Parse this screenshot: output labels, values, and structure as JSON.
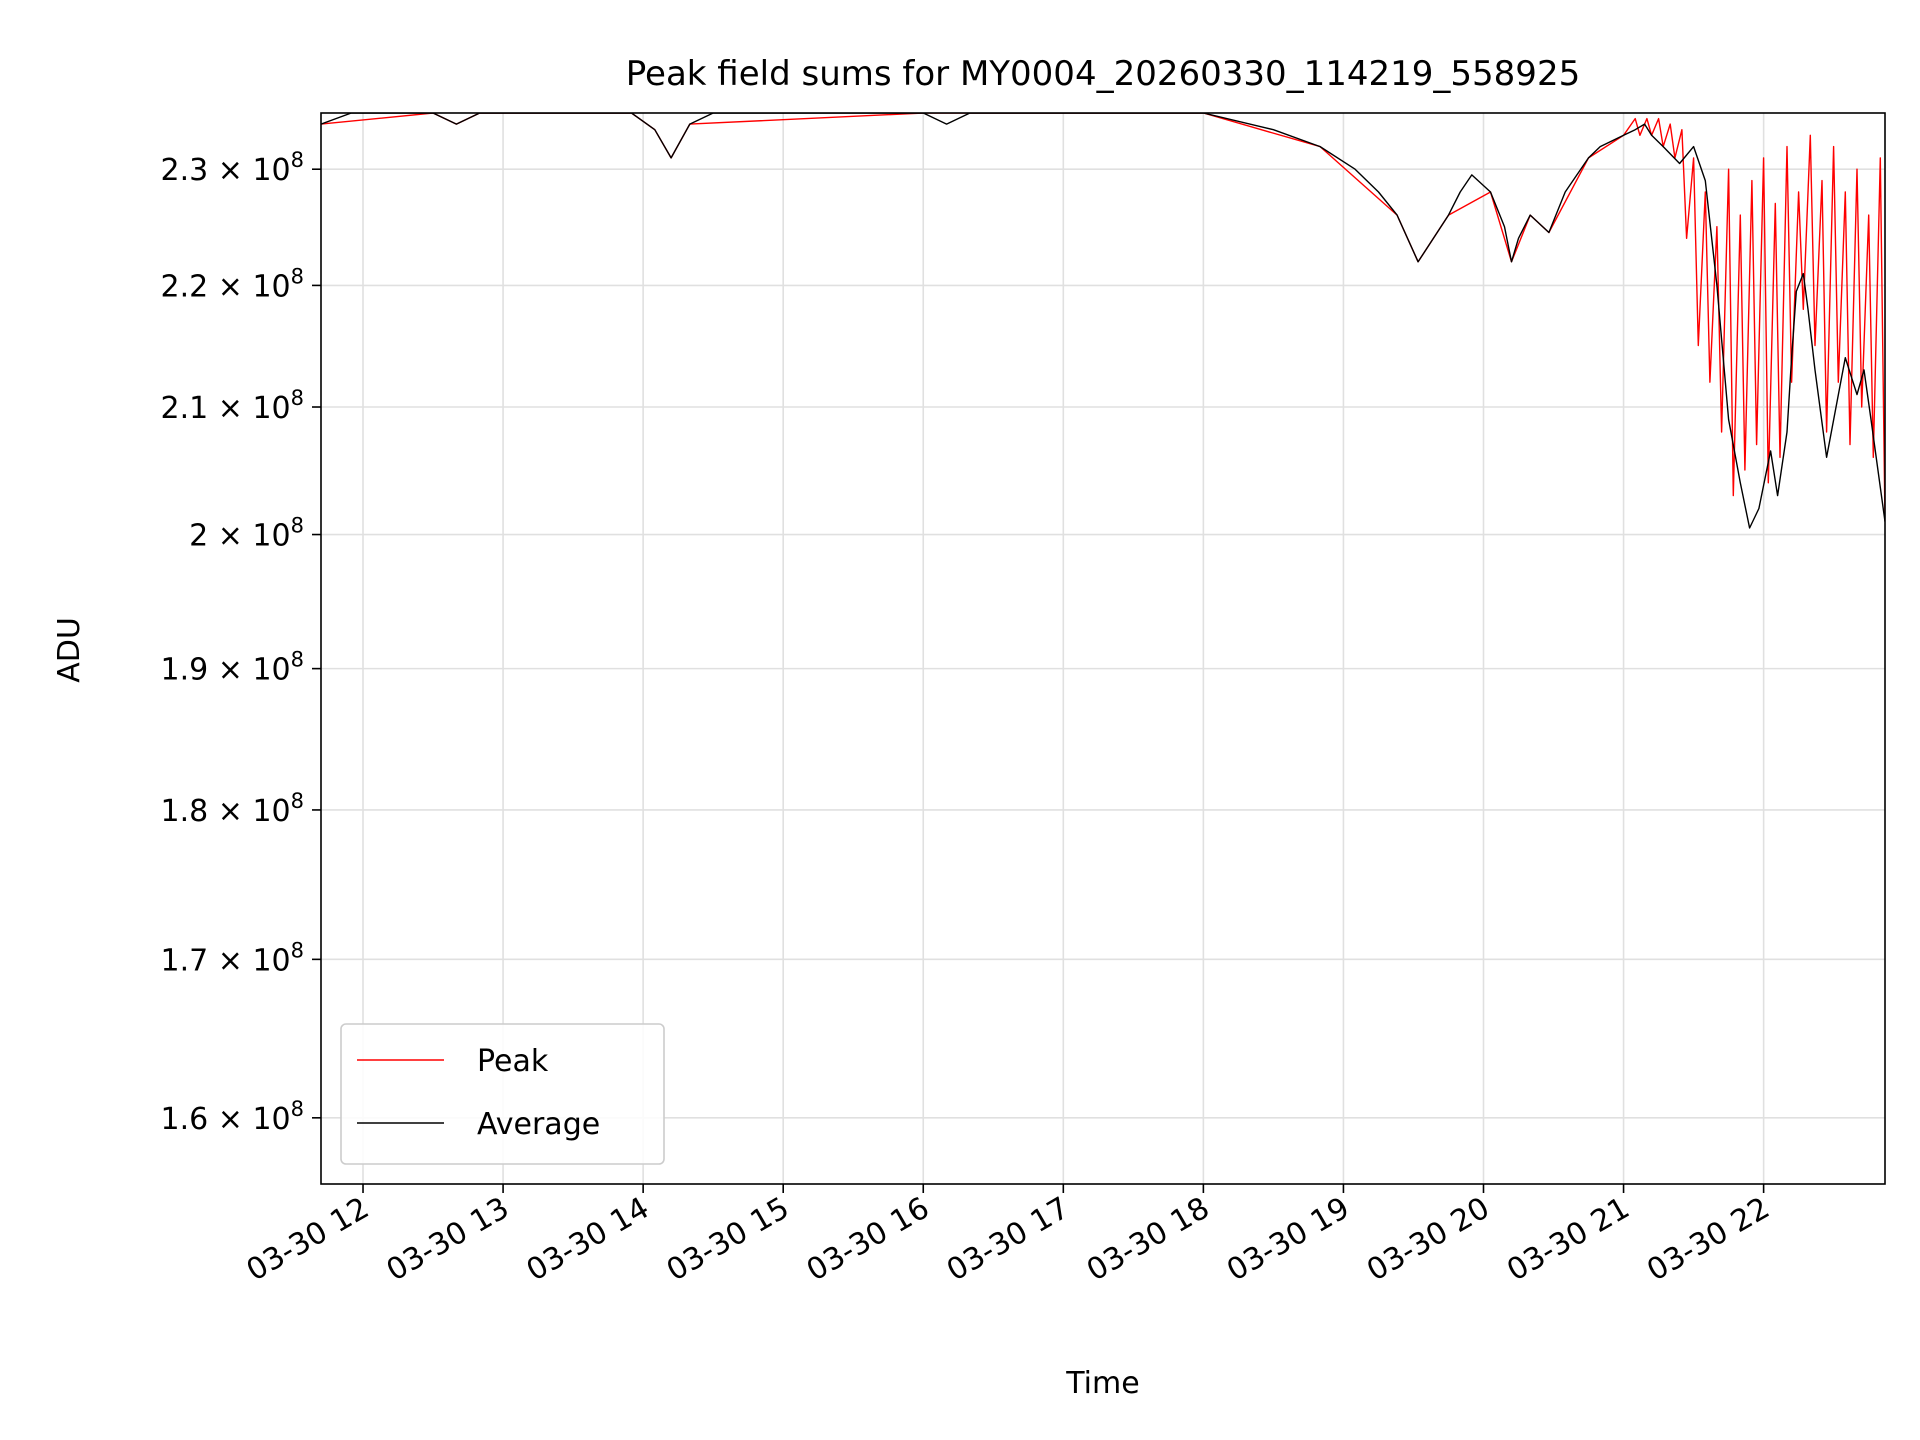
{
  "chart_data": {
    "type": "line",
    "title": "Peak field sums for MY0004_20260330_114219_558925",
    "xlabel": "Time",
    "ylabel": "ADU",
    "y_scale": "log",
    "grid": true,
    "legend_position": "lower-left",
    "xlim": [
      "2026-03-30 11:42",
      "2026-03-30 22:52"
    ],
    "ylim": [
      156000000,
      235000000
    ],
    "x_ticks": [
      "03-30 12",
      "03-30 13",
      "03-30 14",
      "03-30 15",
      "03-30 16",
      "03-30 17",
      "03-30 18",
      "03-30 19",
      "03-30 20",
      "03-30 21",
      "03-30 22"
    ],
    "y_ticks": [
      {
        "value": 160000000,
        "mantissa": "1.6",
        "exp": "8"
      },
      {
        "value": 170000000,
        "mantissa": "1.7",
        "exp": "8"
      },
      {
        "value": 180000000,
        "mantissa": "1.8",
        "exp": "8"
      },
      {
        "value": 190000000,
        "mantissa": "1.9",
        "exp": "8"
      },
      {
        "value": 200000000,
        "mantissa": "2",
        "exp": "8"
      },
      {
        "value": 210000000,
        "mantissa": "2.1",
        "exp": "8"
      },
      {
        "value": 220000000,
        "mantissa": "2.2",
        "exp": "8"
      },
      {
        "value": 230000000,
        "mantissa": "2.3",
        "exp": "8"
      }
    ],
    "series": [
      {
        "name": "Average",
        "color": "#000000",
        "x": [
          "2026-03-30 11:42",
          "2026-03-30 11:55",
          "2026-03-30 12:30",
          "2026-03-30 12:40",
          "2026-03-30 12:50",
          "2026-03-30 13:55",
          "2026-03-30 14:05",
          "2026-03-30 14:12",
          "2026-03-30 14:20",
          "2026-03-30 14:30",
          "2026-03-30 16:00",
          "2026-03-30 16:10",
          "2026-03-30 16:20",
          "2026-03-30 16:40",
          "2026-03-30 18:00",
          "2026-03-30 18:30",
          "2026-03-30 18:50",
          "2026-03-30 19:05",
          "2026-03-30 19:15",
          "2026-03-30 19:23",
          "2026-03-30 19:32",
          "2026-03-30 19:45",
          "2026-03-30 19:50",
          "2026-03-30 19:55",
          "2026-03-30 20:03",
          "2026-03-30 20:09",
          "2026-03-30 20:12",
          "2026-03-30 20:15",
          "2026-03-30 20:20",
          "2026-03-30 20:28",
          "2026-03-30 20:35",
          "2026-03-30 20:45",
          "2026-03-30 20:50",
          "2026-03-30 21:00",
          "2026-03-30 21:05",
          "2026-03-30 21:09",
          "2026-03-30 21:12",
          "2026-03-30 21:17",
          "2026-03-30 21:24",
          "2026-03-30 21:30",
          "2026-03-30 21:35",
          "2026-03-30 21:40",
          "2026-03-30 21:45",
          "2026-03-30 21:50",
          "2026-03-30 21:54",
          "2026-03-30 21:58",
          "2026-03-30 22:03",
          "2026-03-30 22:06",
          "2026-03-30 22:10",
          "2026-03-30 22:12",
          "2026-03-30 22:14",
          "2026-03-30 22:17",
          "2026-03-30 22:19",
          "2026-03-30 22:22",
          "2026-03-30 22:27",
          "2026-03-30 22:35",
          "2026-03-30 22:40",
          "2026-03-30 22:43",
          "2026-03-30 22:46",
          "2026-03-30 22:52"
        ],
        "values": [
          234000000,
          235000000,
          235000000,
          234000000,
          235000000,
          235000000,
          233500000,
          231000000,
          234000000,
          235000000,
          235000000,
          234000000,
          235000000,
          235000000,
          235000000,
          233500000,
          232000000,
          230000000,
          228000000,
          226000000,
          222000000,
          226000000,
          228000000,
          229500000,
          228000000,
          225000000,
          222000000,
          224000000,
          226000000,
          224500000,
          228000000,
          231000000,
          232000000,
          233000000,
          233500000,
          234000000,
          233000000,
          232000000,
          230500000,
          232000000,
          229000000,
          220000000,
          209000000,
          204000000,
          200500000,
          202000000,
          206500000,
          203000000,
          208000000,
          214000000,
          219500000,
          221000000,
          218000000,
          213000000,
          206000000,
          214000000,
          211000000,
          213000000,
          209000000,
          201000000
        ]
      },
      {
        "name": "Peak",
        "color": "#ff0000",
        "x": [
          "2026-03-30 11:42",
          "2026-03-30 12:30",
          "2026-03-30 12:40",
          "2026-03-30 12:50",
          "2026-03-30 13:55",
          "2026-03-30 14:05",
          "2026-03-30 14:12",
          "2026-03-30 14:20",
          "2026-03-30 16:00",
          "2026-03-30 18:00",
          "2026-03-30 18:50",
          "2026-03-30 19:23",
          "2026-03-30 19:32",
          "2026-03-30 19:45",
          "2026-03-30 20:03",
          "2026-03-30 20:12",
          "2026-03-30 20:20",
          "2026-03-30 20:28",
          "2026-03-30 20:45",
          "2026-03-30 21:00",
          "2026-03-30 21:05",
          "2026-03-30 21:07",
          "2026-03-30 21:10",
          "2026-03-30 21:12",
          "2026-03-30 21:15",
          "2026-03-30 21:17",
          "2026-03-30 21:20",
          "2026-03-30 21:22",
          "2026-03-30 21:25",
          "2026-03-30 21:27",
          "2026-03-30 21:30",
          "2026-03-30 21:32",
          "2026-03-30 21:35",
          "2026-03-30 21:37",
          "2026-03-30 21:40",
          "2026-03-30 21:42",
          "2026-03-30 21:45",
          "2026-03-30 21:47",
          "2026-03-30 21:50",
          "2026-03-30 21:52",
          "2026-03-30 21:55",
          "2026-03-30 21:57",
          "2026-03-30 22:00",
          "2026-03-30 22:02",
          "2026-03-30 22:05",
          "2026-03-30 22:07",
          "2026-03-30 22:10",
          "2026-03-30 22:12",
          "2026-03-30 22:15",
          "2026-03-30 22:17",
          "2026-03-30 22:20",
          "2026-03-30 22:22",
          "2026-03-30 22:25",
          "2026-03-30 22:27",
          "2026-03-30 22:30",
          "2026-03-30 22:32",
          "2026-03-30 22:35",
          "2026-03-30 22:37",
          "2026-03-30 22:40",
          "2026-03-30 22:42",
          "2026-03-30 22:45",
          "2026-03-30 22:47",
          "2026-03-30 22:50",
          "2026-03-30 22:52"
        ],
        "values": [
          234000000,
          235000000,
          234000000,
          235000000,
          235000000,
          233500000,
          231000000,
          234000000,
          235000000,
          235000000,
          232000000,
          226000000,
          222000000,
          226000000,
          228000000,
          222000000,
          226000000,
          224500000,
          231000000,
          233000000,
          234500000,
          233000000,
          234500000,
          233000000,
          234500000,
          232000000,
          234000000,
          231000000,
          233500000,
          224000000,
          231000000,
          215000000,
          228000000,
          212000000,
          225000000,
          208000000,
          230000000,
          203000000,
          226000000,
          205000000,
          229000000,
          207000000,
          231000000,
          204000000,
          227000000,
          206000000,
          232000000,
          212000000,
          228000000,
          218000000,
          233000000,
          215000000,
          229000000,
          208000000,
          232000000,
          212000000,
          228000000,
          207000000,
          230000000,
          210000000,
          226000000,
          206000000,
          231000000,
          201000000
        ]
      }
    ]
  }
}
